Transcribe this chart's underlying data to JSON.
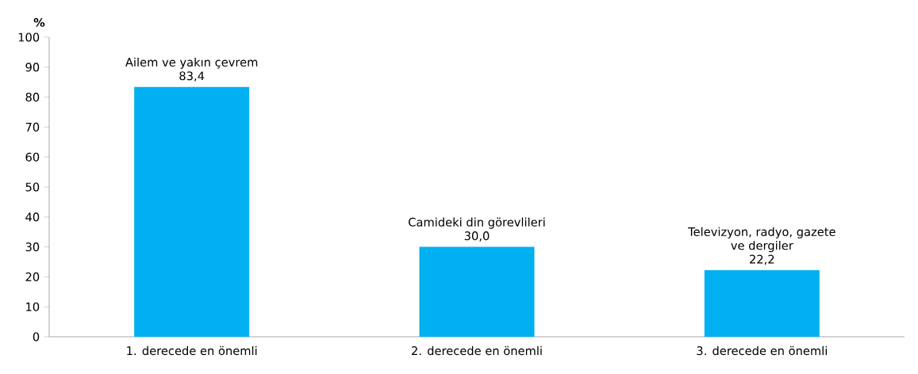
{
  "chart_data": {
    "type": "bar",
    "ylabel": "%",
    "categories": [
      "1. derecede en önemli",
      "2. derecede en önemli",
      "3. derecede en önemli"
    ],
    "values": [
      83.4,
      30.0,
      22.2
    ],
    "value_labels": [
      "83,4",
      "30,0",
      "22,2"
    ],
    "color": "#00b0f0",
    "ylim": [
      0,
      100
    ],
    "yticks": [
      0,
      10,
      20,
      30,
      40,
      50,
      60,
      70,
      80,
      90,
      100
    ],
    "annotations": [
      {
        "text": "Ailem ve yakın çevrem",
        "x": "1. derecede en önemli",
        "y": 83.4
      },
      {
        "text": "Camideki din görevlileri",
        "x": "2. derecede en önemli",
        "y": 30.0
      },
      {
        "text": "Televizyon, radyo, gazete ve dergiler",
        "x": "3. derecede en önemli",
        "y": 22.2
      }
    ]
  }
}
